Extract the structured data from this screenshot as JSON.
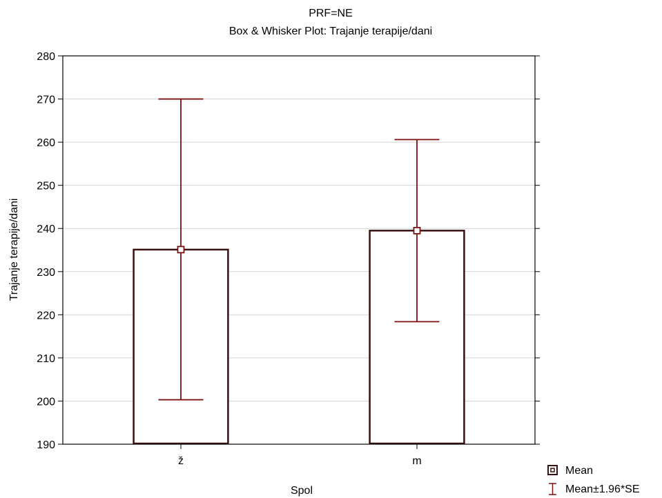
{
  "chart_data": {
    "type": "bar",
    "title_line1": "PRF=NE",
    "title": "Box & Whisker Plot: Trajanje terapije/dani",
    "xlabel": "Spol",
    "ylabel": "Trajanje terapije/dani",
    "categories": [
      "ž",
      "m"
    ],
    "series": [
      {
        "name": "Mean",
        "values": [
          235.1,
          239.5
        ]
      }
    ],
    "error_low": [
      200.3,
      218.4
    ],
    "error_high": [
      270.0,
      260.6
    ],
    "ylim": [
      190,
      280
    ],
    "yticks": [
      "190",
      "200",
      "210",
      "220",
      "230",
      "240",
      "250",
      "260",
      "270",
      "280"
    ],
    "grid": true,
    "legend_position": "bottom-right",
    "legend": [
      {
        "label": "Mean",
        "marker": "square-point"
      },
      {
        "label": "Mean±1.96*SE",
        "marker": "whisker"
      }
    ],
    "colors": {
      "bar_outline": "#3a0f0f",
      "whisker": "#7a0f0f",
      "grid": "#d4d4d4",
      "axis": "#000000"
    }
  }
}
